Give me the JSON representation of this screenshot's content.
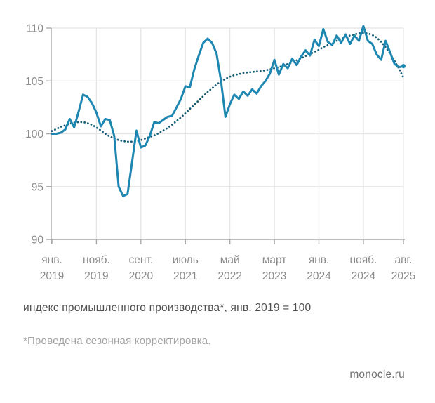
{
  "caption": {
    "text": "индекс промышленного производства*, янв. 2019 = 100"
  },
  "footnote": {
    "text": "*Проведена сезонная корректировка."
  },
  "source": {
    "text": "monocle.ru"
  },
  "chart_data": {
    "type": "line",
    "title": "",
    "ylim": [
      90,
      110
    ],
    "y_ticks": [
      110,
      105,
      100,
      95,
      90
    ],
    "grid": true,
    "x_months_total": 80,
    "x_ticks": [
      {
        "month_index": 0,
        "line1": "янв.",
        "line2": "2019"
      },
      {
        "month_index": 10,
        "line1": "нояб.",
        "line2": "2019"
      },
      {
        "month_index": 20,
        "line1": "сент.",
        "line2": "2020"
      },
      {
        "month_index": 30,
        "line1": "июль",
        "line2": "2021"
      },
      {
        "month_index": 40,
        "line1": "май",
        "line2": "2022"
      },
      {
        "month_index": 50,
        "line1": "март",
        "line2": "2023"
      },
      {
        "month_index": 60,
        "line1": "янв.",
        "line2": "2024"
      },
      {
        "month_index": 70,
        "line1": "нояб.",
        "line2": "2024"
      },
      {
        "month_index": 79,
        "line1": "авг.",
        "line2": "2025"
      }
    ],
    "colors": {
      "solid_line": "#1d87b2",
      "dotted_line": "#175d76",
      "grid": "#e4e4e4",
      "axis": "#a8a8a8",
      "tick_labels": "#8a8a8a"
    },
    "series": [
      {
        "id": "industrial-production-index",
        "style": "solid",
        "color": "#1d87b2",
        "values": [
          100.0,
          100.0,
          100.1,
          100.4,
          101.4,
          100.6,
          102.1,
          103.7,
          103.5,
          102.9,
          102.0,
          100.7,
          101.4,
          101.3,
          99.8,
          95.0,
          94.1,
          94.3,
          97.3,
          100.3,
          98.7,
          98.9,
          99.8,
          101.1,
          101.0,
          101.3,
          101.6,
          101.7,
          102.5,
          103.3,
          104.5,
          104.4,
          106.1,
          107.4,
          108.6,
          109.0,
          108.6,
          107.6,
          105.0,
          101.6,
          102.8,
          103.7,
          103.3,
          104.0,
          103.6,
          104.2,
          103.8,
          104.5,
          105.0,
          105.7,
          107.0,
          105.6,
          106.6,
          106.2,
          107.1,
          106.5,
          107.3,
          107.9,
          107.4,
          108.9,
          108.3,
          109.9,
          108.7,
          108.4,
          109.3,
          108.6,
          109.4,
          108.5,
          109.3,
          108.8,
          110.2,
          108.8,
          108.5,
          107.5,
          107.0,
          108.8,
          107.7,
          106.6,
          106.3,
          106.4
        ]
      },
      {
        "id": "smoothed-trend",
        "style": "dotted",
        "color": "#175d76",
        "values": [
          100.25,
          100.45,
          100.65,
          100.8,
          100.95,
          101.05,
          101.1,
          101.1,
          101.0,
          100.85,
          100.6,
          100.3,
          100.0,
          99.75,
          99.55,
          99.4,
          99.3,
          99.25,
          99.25,
          99.3,
          99.4,
          99.55,
          99.7,
          99.85,
          100.05,
          100.3,
          100.55,
          100.85,
          101.2,
          101.55,
          101.95,
          102.35,
          102.75,
          103.15,
          103.55,
          103.95,
          104.3,
          104.65,
          104.95,
          105.2,
          105.4,
          105.55,
          105.65,
          105.75,
          105.8,
          105.85,
          105.9,
          105.95,
          106.0,
          106.1,
          106.2,
          106.3,
          106.45,
          106.6,
          106.75,
          106.95,
          107.15,
          107.35,
          107.55,
          107.75,
          107.95,
          108.2,
          108.4,
          108.6,
          108.8,
          109.0,
          109.15,
          109.3,
          109.4,
          109.5,
          109.55,
          109.5,
          109.35,
          109.1,
          108.7,
          108.2,
          107.6,
          106.9,
          106.15,
          105.3
        ]
      }
    ]
  }
}
